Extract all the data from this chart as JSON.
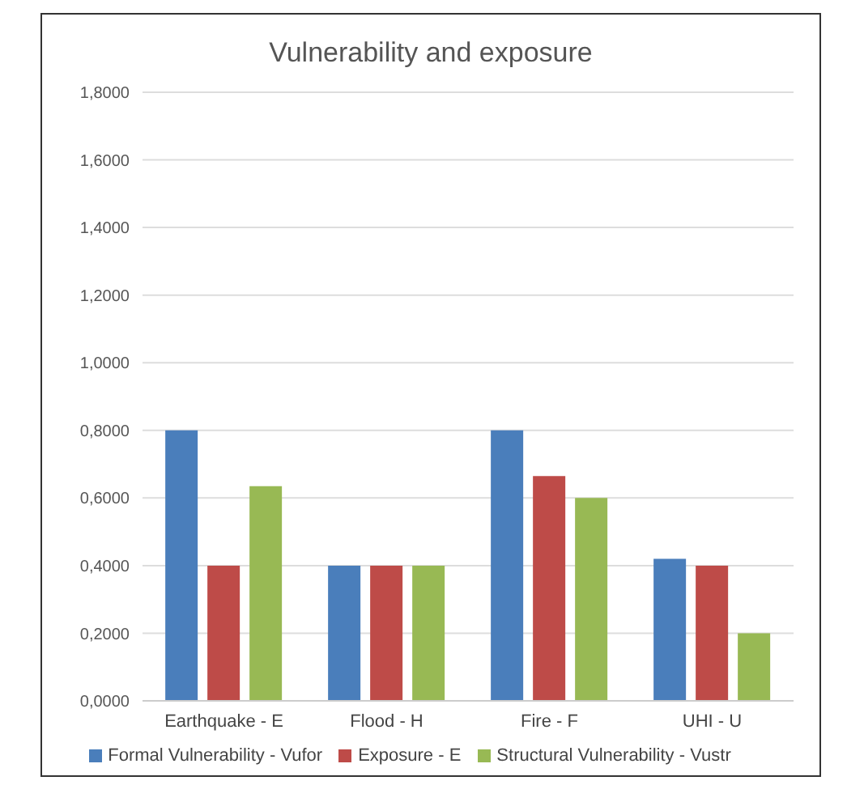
{
  "chart_data": {
    "type": "bar",
    "title": "Vulnerability and exposure",
    "categories": [
      "Earthquake - E",
      "Flood - H",
      "Fire - F",
      "UHI - U"
    ],
    "series": [
      {
        "name": "Formal Vulnerability - Vufor",
        "color": "#4a7ebb",
        "values": [
          0.8,
          0.4,
          0.8,
          0.42
        ]
      },
      {
        "name": "Exposure - E",
        "color": "#be4b48",
        "values": [
          0.4,
          0.4,
          0.665,
          0.4
        ]
      },
      {
        "name": "Structural Vulnerability - Vustr",
        "color": "#98b954",
        "values": [
          0.635,
          0.4,
          0.6,
          0.2
        ]
      }
    ],
    "ylim": [
      0,
      1.8
    ],
    "yticks": [
      {
        "value": 0,
        "label": "0,0000"
      },
      {
        "value": 0.2,
        "label": "0,2000"
      },
      {
        "value": 0.4,
        "label": "0,4000"
      },
      {
        "value": 0.6,
        "label": "0,6000"
      },
      {
        "value": 0.8,
        "label": "0,8000"
      },
      {
        "value": 1,
        "label": "1,0000"
      },
      {
        "value": 1.2,
        "label": "1,2000"
      },
      {
        "value": 1.4,
        "label": "1,4000"
      },
      {
        "value": 1.6,
        "label": "1,6000"
      },
      {
        "value": 1.8,
        "label": "1,8000"
      }
    ],
    "grid": "y",
    "legend": "bottom"
  }
}
